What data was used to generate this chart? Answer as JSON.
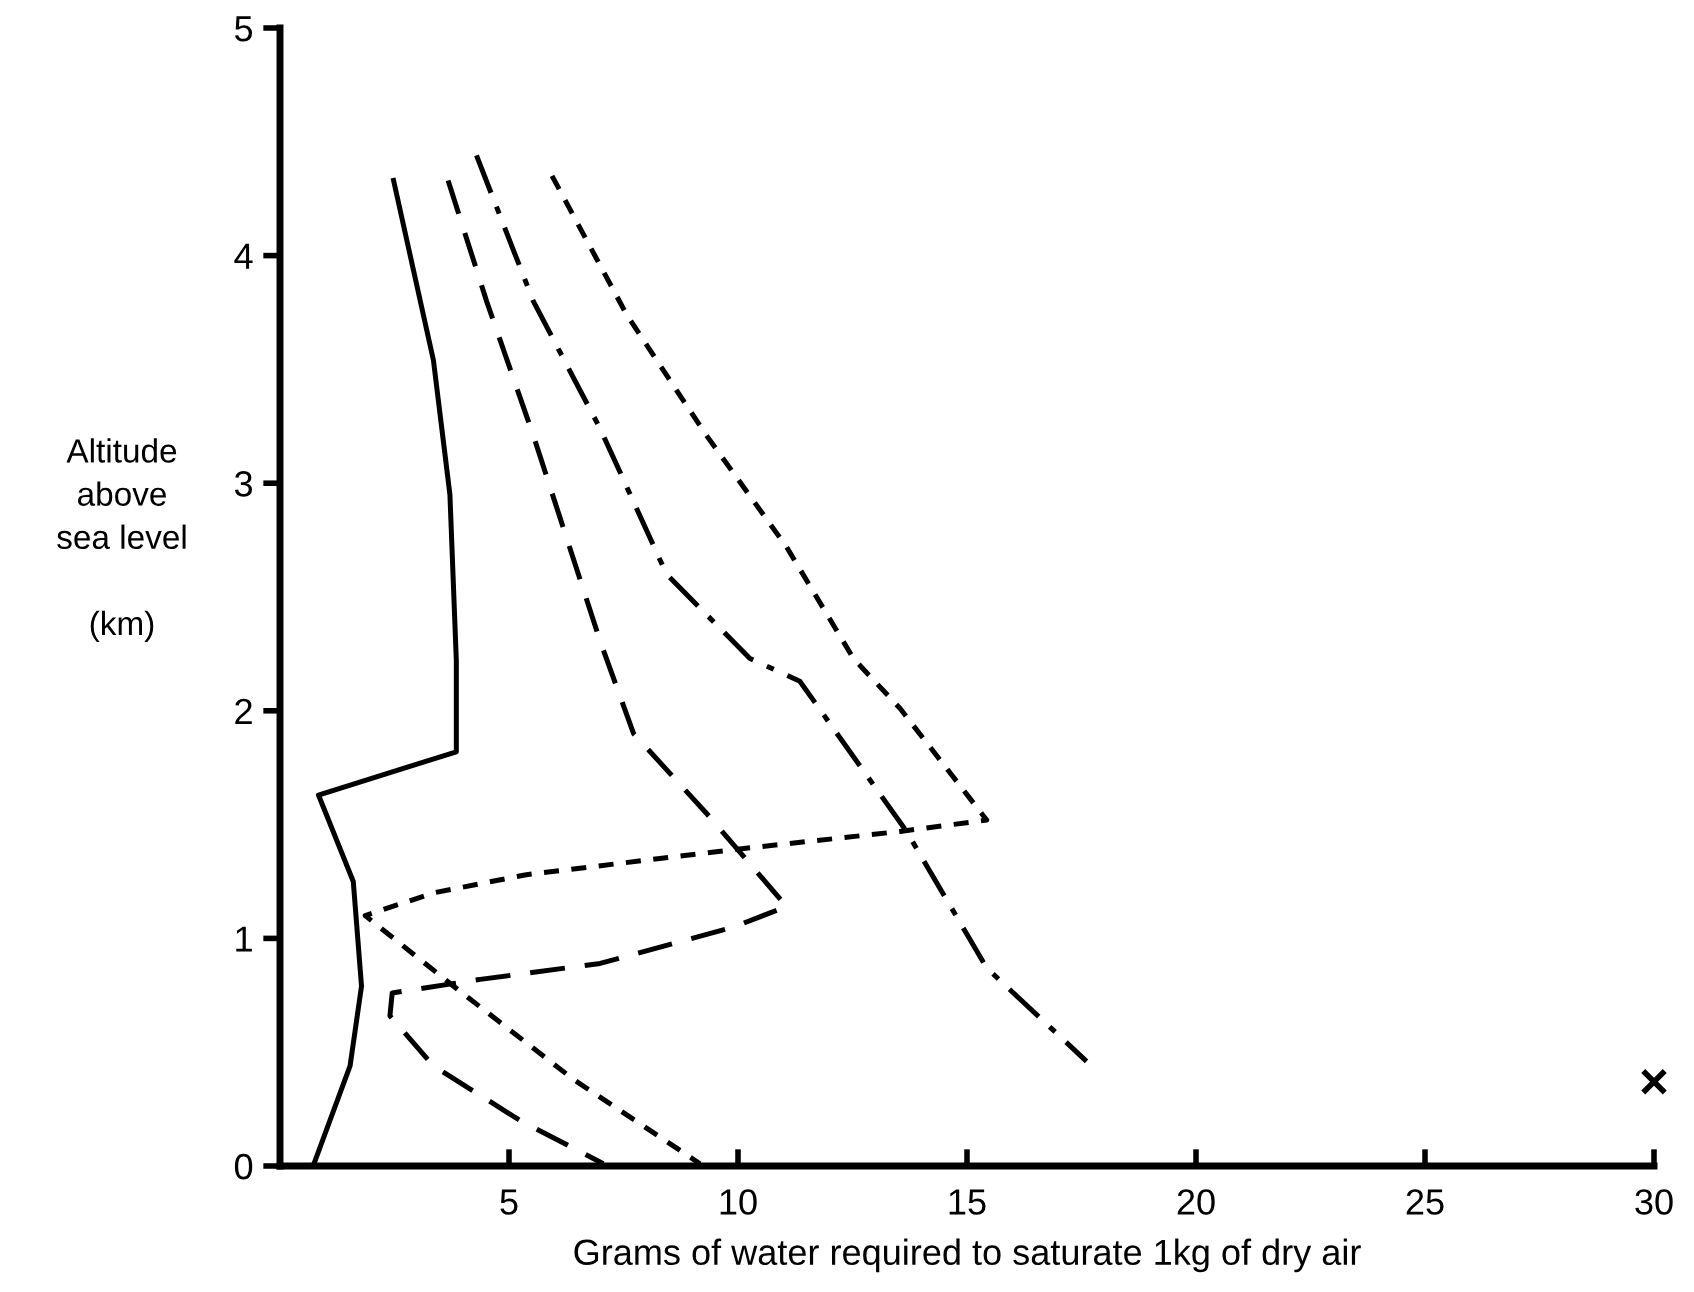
{
  "chart_data": {
    "type": "line",
    "xlabel": "Grams of water required to saturate 1kg of dry air",
    "ylabel": "Altitude\nabove\nsea level\n\n(km)",
    "xlim": [
      0,
      30
    ],
    "ylim": [
      0,
      5
    ],
    "xticks": [
      {
        "value": 0,
        "label": null
      },
      5,
      10,
      15,
      20,
      25,
      30
    ],
    "yticks": [
      0,
      1,
      2,
      3,
      4,
      5
    ],
    "grid": false,
    "legend": false,
    "marker": "none",
    "series": [
      {
        "color": "#000000",
        "line_style": "solid",
        "x": [
          2.48,
          3.35,
          3.71,
          3.85,
          3.85,
          0.84,
          1.6,
          1.78,
          1.53,
          0.76
        ],
        "values": [
          4.33,
          3.54,
          2.95,
          2.22,
          1.82,
          1.63,
          1.25,
          0.79,
          0.44,
          0.02
        ]
      },
      {
        "color": "#000000",
        "line_style": "dashed",
        "x": [
          3.67,
          4.51,
          5.53,
          7.0,
          7.72,
          9.31,
          11.06,
          9.9,
          6.99,
          4.37,
          2.45,
          2.4,
          3.35,
          5.24,
          7.06
        ],
        "values": [
          4.33,
          3.8,
          3.21,
          2.3,
          1.9,
          1.55,
          1.14,
          1.05,
          0.89,
          0.82,
          0.76,
          0.66,
          0.44,
          0.2,
          0.01
        ]
      },
      {
        "color": "#000000",
        "line_style": "dashdot",
        "x": [
          4.29,
          5.53,
          6.99,
          8.44,
          10.26,
          11.35,
          13.68,
          15.43,
          17.61
        ],
        "values": [
          4.44,
          3.8,
          3.24,
          2.6,
          2.23,
          2.13,
          1.47,
          0.87,
          0.46
        ]
      },
      {
        "color": "#000000",
        "line_style": "dotted",
        "x": [
          5.94,
          7.57,
          9.31,
          11.06,
          12.52,
          13.54,
          15.43,
          13.54,
          9.9,
          5.38,
          3.35,
          1.86,
          3.79,
          6.41,
          9.17
        ],
        "values": [
          4.35,
          3.74,
          3.21,
          2.72,
          2.23,
          2.01,
          1.52,
          1.47,
          1.39,
          1.28,
          1.2,
          1.1,
          0.79,
          0.38,
          0.01
        ]
      },
      {
        "type": "scatter",
        "marker": "cross",
        "color": "#000000",
        "x": [
          30
        ],
        "values": [
          0.37
        ]
      }
    ]
  }
}
